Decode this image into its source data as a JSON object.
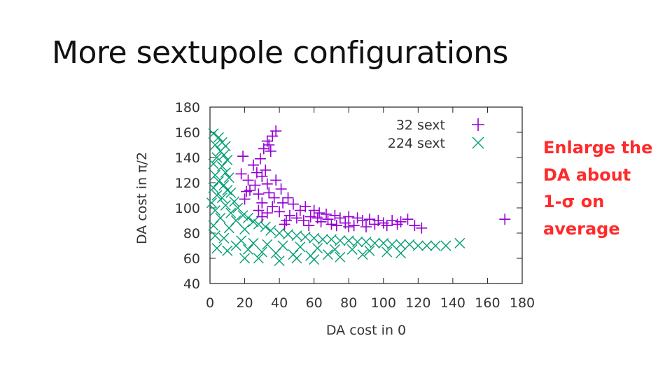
{
  "slide": {
    "title": "More sextupole configurations",
    "note_lines": [
      "Enlarge the",
      "DA about",
      "1-σ on",
      "average"
    ]
  },
  "colors": {
    "series_32": "#9400d3",
    "series_224": "#009e73",
    "note_text": "#ff2a2a"
  },
  "chart_data": {
    "type": "scatter",
    "title": "",
    "xlabel": "DA cost in 0",
    "ylabel": "DA cost in π/2",
    "xlim": [
      0,
      180
    ],
    "ylim": [
      40,
      180
    ],
    "xticks": [
      0,
      20,
      40,
      60,
      80,
      100,
      120,
      140,
      160,
      180
    ],
    "yticks": [
      40,
      60,
      80,
      100,
      120,
      140,
      160,
      180
    ],
    "legend_position": "top-right",
    "grid": false,
    "series": [
      {
        "name": "32 sext",
        "marker": "plus",
        "color": "#9400d3",
        "points": [
          [
            38,
            161
          ],
          [
            36,
            157
          ],
          [
            33,
            153
          ],
          [
            34,
            150
          ],
          [
            31,
            147
          ],
          [
            35,
            145
          ],
          [
            19,
            141
          ],
          [
            29,
            139
          ],
          [
            25,
            134
          ],
          [
            32,
            130
          ],
          [
            27,
            128
          ],
          [
            30,
            125
          ],
          [
            18,
            127
          ],
          [
            22,
            122
          ],
          [
            26,
            118
          ],
          [
            33,
            119
          ],
          [
            38,
            122
          ],
          [
            23,
            114
          ],
          [
            20,
            107
          ],
          [
            21,
            113
          ],
          [
            28,
            111
          ],
          [
            34,
            112
          ],
          [
            41,
            115
          ],
          [
            45,
            108
          ],
          [
            37,
            108
          ],
          [
            30,
            104
          ],
          [
            42,
            104
          ],
          [
            48,
            103
          ],
          [
            55,
            101
          ],
          [
            52,
            98
          ],
          [
            60,
            98
          ],
          [
            63,
            96
          ],
          [
            67,
            95
          ],
          [
            72,
            94
          ],
          [
            75,
            92
          ],
          [
            80,
            93
          ],
          [
            85,
            92
          ],
          [
            88,
            90
          ],
          [
            92,
            91
          ],
          [
            97,
            90
          ],
          [
            100,
            88
          ],
          [
            105,
            90
          ],
          [
            110,
            89
          ],
          [
            114,
            91
          ],
          [
            118,
            86
          ],
          [
            122,
            84
          ],
          [
            58,
            93
          ],
          [
            64,
            89
          ],
          [
            70,
            87
          ],
          [
            78,
            88
          ],
          [
            83,
            86
          ],
          [
            90,
            85
          ],
          [
            95,
            87
          ],
          [
            102,
            86
          ],
          [
            108,
            87
          ],
          [
            46,
            94
          ],
          [
            50,
            92
          ],
          [
            40,
            97
          ],
          [
            36,
            101
          ],
          [
            33,
            96
          ],
          [
            30,
            93
          ],
          [
            28,
            98
          ],
          [
            44,
            90
          ],
          [
            54,
            90
          ],
          [
            62,
            92
          ],
          [
            68,
            91
          ],
          [
            43,
            87
          ],
          [
            57,
            86
          ],
          [
            73,
            86
          ],
          [
            80,
            85
          ],
          [
            170,
            91
          ]
        ]
      },
      {
        "name": "224 sext",
        "marker": "cross",
        "color": "#009e73",
        "points": [
          [
            2,
            159
          ],
          [
            5,
            156
          ],
          [
            7,
            152
          ],
          [
            9,
            149
          ],
          [
            3,
            150
          ],
          [
            6,
            145
          ],
          [
            8,
            142
          ],
          [
            4,
            140
          ],
          [
            10,
            138
          ],
          [
            2,
            135
          ],
          [
            7,
            133
          ],
          [
            9,
            128
          ],
          [
            3,
            126
          ],
          [
            11,
            124
          ],
          [
            5,
            121
          ],
          [
            8,
            118
          ],
          [
            2,
            116
          ],
          [
            10,
            114
          ],
          [
            12,
            112
          ],
          [
            4,
            110
          ],
          [
            7,
            108
          ],
          [
            14,
            105
          ],
          [
            1,
            104
          ],
          [
            9,
            102
          ],
          [
            16,
            100
          ],
          [
            3,
            98
          ],
          [
            12,
            96
          ],
          [
            19,
            94
          ],
          [
            22,
            92
          ],
          [
            25,
            89
          ],
          [
            6,
            92
          ],
          [
            15,
            90
          ],
          [
            28,
            87
          ],
          [
            32,
            85
          ],
          [
            2,
            86
          ],
          [
            11,
            84
          ],
          [
            20,
            83
          ],
          [
            35,
            82
          ],
          [
            40,
            80
          ],
          [
            45,
            79
          ],
          [
            50,
            78
          ],
          [
            55,
            77
          ],
          [
            60,
            76
          ],
          [
            65,
            75
          ],
          [
            70,
            75
          ],
          [
            75,
            74
          ],
          [
            80,
            74
          ],
          [
            85,
            73
          ],
          [
            90,
            73
          ],
          [
            95,
            72
          ],
          [
            100,
            72
          ],
          [
            105,
            71
          ],
          [
            110,
            71
          ],
          [
            115,
            71
          ],
          [
            120,
            70
          ],
          [
            125,
            70
          ],
          [
            130,
            70
          ],
          [
            136,
            70
          ],
          [
            144,
            72
          ],
          [
            8,
            76
          ],
          [
            18,
            74
          ],
          [
            25,
            72
          ],
          [
            33,
            71
          ],
          [
            42,
            70
          ],
          [
            52,
            69
          ],
          [
            62,
            68
          ],
          [
            72,
            67
          ],
          [
            82,
            67
          ],
          [
            92,
            66
          ],
          [
            102,
            65
          ],
          [
            15,
            70
          ],
          [
            22,
            67
          ],
          [
            30,
            65
          ],
          [
            38,
            64
          ],
          [
            48,
            63
          ],
          [
            58,
            62
          ],
          [
            68,
            63
          ],
          [
            88,
            63
          ],
          [
            110,
            64
          ],
          [
            20,
            60
          ],
          [
            28,
            60
          ],
          [
            40,
            58
          ],
          [
            50,
            60
          ],
          [
            60,
            59
          ],
          [
            75,
            61
          ],
          [
            4,
            68
          ],
          [
            10,
            66
          ],
          [
            3,
            78
          ]
        ]
      }
    ]
  }
}
